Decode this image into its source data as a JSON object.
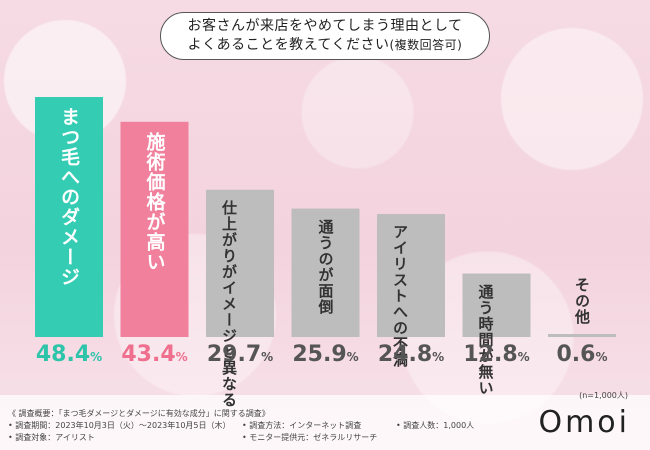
{
  "title": {
    "line1": "お客さんが来店をやめてしまう理由として",
    "line2": "よくあることを教えてください",
    "line2_small": "(複数回答可)"
  },
  "chart_data": {
    "type": "bar",
    "title": "お客さんが来店をやめてしまう理由としてよくあることを教えてください(複数回答可)",
    "categories": [
      "まつ毛へのダメージ",
      "施術価格が高い",
      "仕上がりがイメージと異なる",
      "通うのが面倒",
      "アイリストへの不満",
      "通う時間が無い",
      "その他"
    ],
    "values": [
      48.4,
      43.4,
      29.7,
      25.9,
      24.8,
      12.8,
      0.6
    ],
    "unit": "%",
    "ylim": [
      0,
      50
    ],
    "grid": false,
    "colors": [
      "#34cdb4",
      "#f0809c",
      "#bdbdbd",
      "#bdbdbd",
      "#bdbdbd",
      "#bdbdbd",
      "#bdbdbd"
    ],
    "pct_colors": [
      "#2ec4aa",
      "#ee6f8e",
      "#555555",
      "#555555",
      "#555555",
      "#555555",
      "#555555"
    ],
    "label_colors": [
      "#ffffff",
      "#ffffff",
      "#333333",
      "#333333",
      "#333333",
      "#333333",
      "#333333"
    ],
    "sample": "(n=1,000人)"
  },
  "survey": {
    "overview": "《 調査概要：「まつ毛ダメージとダメージに有効な成分」に関する調査》",
    "period": "• 調査期間：2023年10月3日（火）〜2023年10月5日（木）",
    "target": "• 調査対象：アイリスト",
    "method": "• 調査方法：インターネット調査",
    "provider": "• モニター提供元：ゼネラルリサーチ",
    "count": "• 調査人数：1,000人"
  },
  "brand": "Omoi"
}
